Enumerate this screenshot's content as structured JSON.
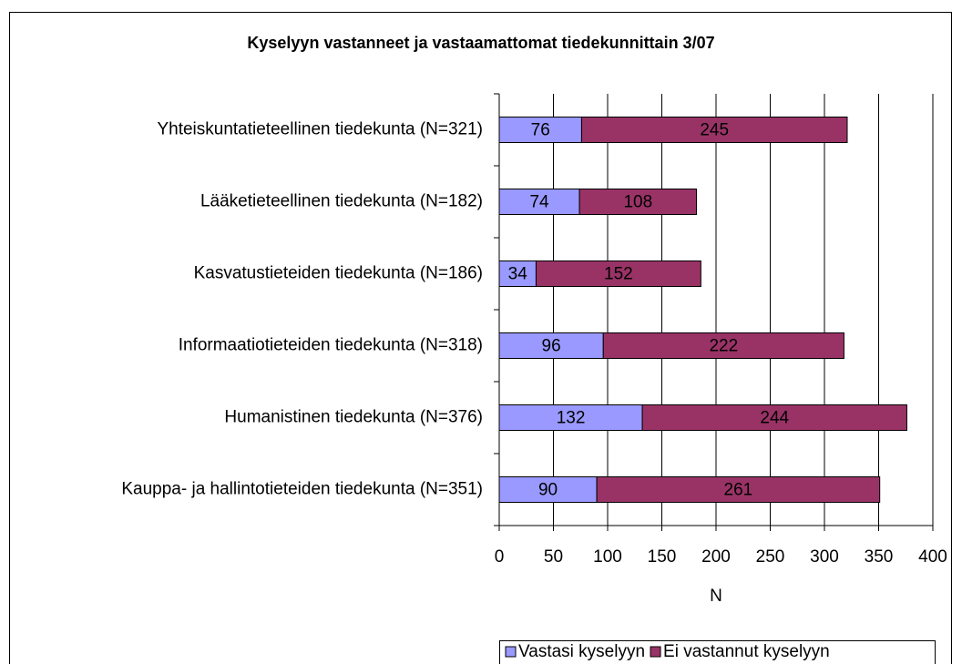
{
  "chart_data": {
    "type": "stacked-barh",
    "title": "Kyselyyn vastanneet ja vastaamattomat tiedekunnittain 3/07",
    "x_label": "N",
    "categories": [
      "Yhteiskuntatieteellinen tiedekunta (N=321)",
      "Lääketieteellinen tiedekunta (N=182)",
      "Kasvatustieteiden tiedekunta (N=186)",
      "Informaatiotieteiden tiedekunta (N=318)",
      "Humanistinen tiedekunta (N=376)",
      "Kauppa- ja hallintotieteiden tiedekunta (N=351)"
    ],
    "series": [
      {
        "name": "Vastasi kyselyyn",
        "color": "#9999ff",
        "values": [
          76,
          74,
          34,
          96,
          132,
          90
        ]
      },
      {
        "name": "Ei vastannut kyselyyn",
        "color": "#993366",
        "values": [
          245,
          108,
          152,
          222,
          244,
          261
        ]
      }
    ],
    "xlim": [
      0,
      400
    ],
    "xticks": [
      0,
      50,
      100,
      150,
      200,
      250,
      300,
      350,
      400
    ],
    "grid": true,
    "legend": "bottom"
  }
}
